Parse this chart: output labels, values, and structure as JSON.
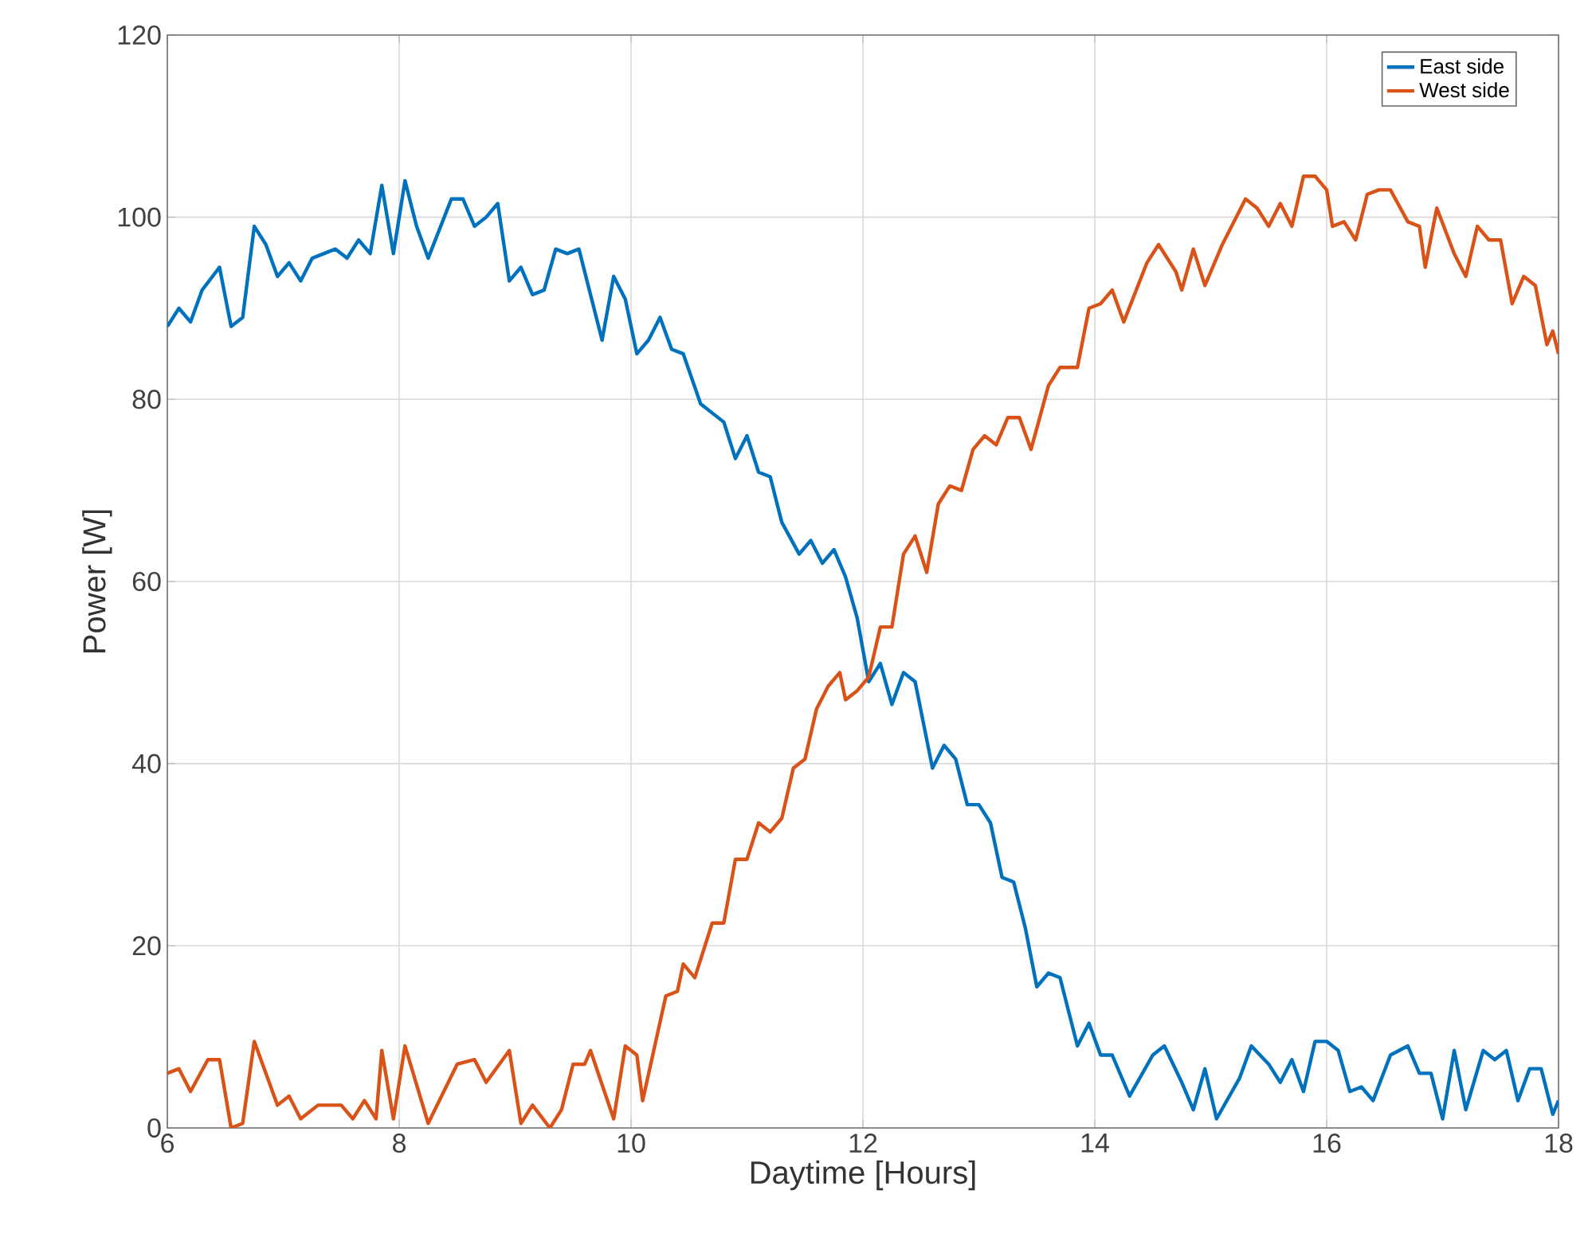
{
  "chart_data": {
    "type": "line",
    "xlabel": "Daytime [Hours]",
    "ylabel": "Power [W]",
    "xlim": [
      6,
      18
    ],
    "ylim": [
      0,
      120
    ],
    "xticks": [
      6,
      8,
      10,
      12,
      14,
      16,
      18
    ],
    "yticks": [
      0,
      20,
      40,
      60,
      80,
      100,
      120
    ],
    "grid": true,
    "legend": "top right",
    "line_style": "solid",
    "marker": "none",
    "series": [
      {
        "name": "East side",
        "color": "#0072bd",
        "x": [
          6.0,
          6.1,
          6.2,
          6.3,
          6.45,
          6.55,
          6.65,
          6.75,
          6.85,
          6.95,
          7.05,
          7.15,
          7.25,
          7.45,
          7.55,
          7.65,
          7.75,
          7.85,
          7.95,
          8.05,
          8.15,
          8.25,
          8.45,
          8.55,
          8.65,
          8.75,
          8.85,
          8.95,
          9.05,
          9.15,
          9.25,
          9.35,
          9.45,
          9.55,
          9.75,
          9.85,
          9.95,
          10.05,
          10.15,
          10.25,
          10.35,
          10.45,
          10.6,
          10.8,
          10.9,
          11.0,
          11.1,
          11.2,
          11.3,
          11.45,
          11.55,
          11.65,
          11.75,
          11.85,
          11.95,
          12.05,
          12.15,
          12.25,
          12.35,
          12.45,
          12.6,
          12.7,
          12.8,
          12.9,
          13.0,
          13.1,
          13.2,
          13.3,
          13.4,
          13.5,
          13.6,
          13.7,
          13.85,
          13.95,
          14.05,
          14.15,
          14.3,
          14.5,
          14.6,
          14.75,
          14.85,
          14.95,
          15.05,
          15.25,
          15.35,
          15.5,
          15.6,
          15.7,
          15.8,
          15.9,
          16.0,
          16.1,
          16.2,
          16.3,
          16.4,
          16.55,
          16.7,
          16.8,
          16.9,
          17.0,
          17.1,
          17.2,
          17.35,
          17.45,
          17.55,
          17.65,
          17.75,
          17.85,
          17.95,
          18.0
        ],
        "values": [
          88,
          90,
          88.5,
          92,
          94.5,
          88,
          89,
          99,
          97,
          93.5,
          95,
          93,
          95.5,
          96.5,
          95.5,
          97.5,
          96,
          103.5,
          96,
          104,
          99,
          95.5,
          102,
          102,
          99,
          100,
          101.5,
          93,
          94.5,
          91.5,
          92,
          96.5,
          96,
          96.5,
          86.5,
          93.5,
          91,
          85,
          86.5,
          89,
          85.5,
          85,
          79.5,
          77.5,
          73.5,
          76,
          72,
          71.5,
          66.5,
          63,
          64.5,
          62,
          63.5,
          60.5,
          56,
          49,
          51,
          46.5,
          50,
          49,
          39.5,
          42,
          40.5,
          35.5,
          35.5,
          33.5,
          27.5,
          27,
          22,
          15.5,
          17,
          16.5,
          9,
          11.5,
          8,
          8,
          3.5,
          8,
          9,
          5,
          2,
          6.5,
          1,
          5.5,
          9,
          7,
          5,
          7.5,
          4,
          9.5,
          9.5,
          8.5,
          4,
          4.5,
          3,
          8,
          9,
          6,
          6,
          1,
          8.5,
          2,
          8.5,
          7.5,
          8.5,
          3,
          6.5,
          6.5,
          1.5,
          3
        ]
      },
      {
        "name": "West side",
        "color": "#d95319",
        "x": [
          6.0,
          6.1,
          6.2,
          6.35,
          6.45,
          6.55,
          6.65,
          6.75,
          6.95,
          7.05,
          7.15,
          7.3,
          7.5,
          7.6,
          7.7,
          7.8,
          7.85,
          7.95,
          8.05,
          8.25,
          8.5,
          8.65,
          8.75,
          8.95,
          9.05,
          9.15,
          9.3,
          9.4,
          9.5,
          9.6,
          9.65,
          9.85,
          9.95,
          10.05,
          10.1,
          10.3,
          10.4,
          10.45,
          10.55,
          10.7,
          10.8,
          10.9,
          11.0,
          11.1,
          11.2,
          11.3,
          11.4,
          11.5,
          11.6,
          11.7,
          11.8,
          11.85,
          11.95,
          12.05,
          12.15,
          12.25,
          12.35,
          12.45,
          12.55,
          12.65,
          12.75,
          12.85,
          12.95,
          13.05,
          13.15,
          13.25,
          13.35,
          13.45,
          13.6,
          13.7,
          13.85,
          13.95,
          14.05,
          14.15,
          14.25,
          14.45,
          14.55,
          14.7,
          14.75,
          14.85,
          14.95,
          15.1,
          15.3,
          15.4,
          15.5,
          15.6,
          15.7,
          15.8,
          15.9,
          16.0,
          16.05,
          16.15,
          16.25,
          16.35,
          16.45,
          16.55,
          16.7,
          16.8,
          16.85,
          16.95,
          17.1,
          17.2,
          17.3,
          17.4,
          17.5,
          17.6,
          17.7,
          17.8,
          17.9,
          17.95,
          18.0
        ],
        "values": [
          6,
          6.5,
          4,
          7.5,
          7.5,
          0,
          0.5,
          9.5,
          2.5,
          3.5,
          1,
          2.5,
          2.5,
          1,
          3,
          1,
          8.5,
          1,
          9,
          0.5,
          7,
          7.5,
          5,
          8.5,
          0.5,
          2.5,
          0,
          2,
          7,
          7,
          8.5,
          1,
          9,
          8,
          3,
          14.5,
          15,
          18,
          16.5,
          22.5,
          22.5,
          29.5,
          29.5,
          33.5,
          32.5,
          34,
          39.5,
          40.5,
          46,
          48.5,
          50,
          47,
          48,
          49.5,
          55,
          55,
          63,
          65,
          61,
          68.5,
          70.5,
          70,
          74.5,
          76,
          75,
          78,
          78,
          74.5,
          81.5,
          83.5,
          83.5,
          90,
          90.5,
          92,
          88.5,
          95,
          97,
          94,
          92,
          96.5,
          92.5,
          97,
          102,
          101,
          99,
          101.5,
          99,
          104.5,
          104.5,
          103,
          99,
          99.5,
          97.5,
          102.5,
          103,
          103,
          99.5,
          99,
          94.5,
          101,
          96,
          93.5,
          99,
          97.5,
          97.5,
          90.5,
          93.5,
          92.5,
          86,
          87.5,
          85
        ]
      }
    ]
  }
}
